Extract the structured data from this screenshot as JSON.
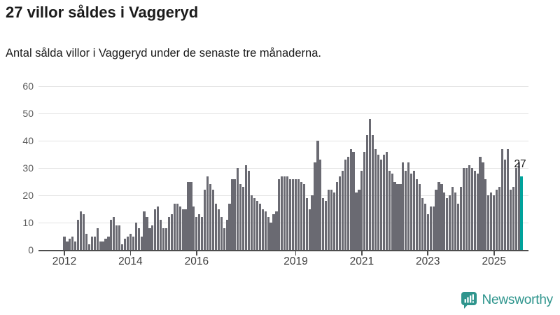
{
  "header": {
    "title": "27 villor såldes i Vaggeryd",
    "subtitle": "Antal sålda villor i Vaggeryd under de senaste tre månaderna."
  },
  "chart_data": {
    "type": "bar",
    "x_start": "2012-01",
    "x_interval": "month",
    "values": [
      5,
      3,
      4,
      5,
      3,
      11,
      14,
      13,
      6,
      2,
      5,
      5,
      8,
      3,
      3,
      4,
      5,
      11,
      12,
      9,
      9,
      2,
      4,
      5,
      6,
      5,
      10,
      8,
      5,
      14,
      12,
      8,
      9,
      15,
      16,
      11,
      8,
      8,
      12,
      13,
      17,
      17,
      16,
      15,
      15,
      25,
      25,
      16,
      12,
      13,
      12,
      22,
      27,
      24,
      22,
      17,
      15,
      12,
      8,
      11,
      17,
      26,
      26,
      30,
      24,
      23,
      31,
      29,
      20,
      19,
      18,
      17,
      15,
      14,
      12,
      10,
      13,
      14,
      26,
      27,
      27,
      27,
      26,
      26,
      26,
      26,
      25,
      24,
      19,
      15,
      20,
      32,
      40,
      33,
      19,
      18,
      22,
      22,
      21,
      25,
      27,
      29,
      33,
      34,
      37,
      36,
      21,
      22,
      29,
      36,
      42,
      48,
      42,
      37,
      35,
      33,
      35,
      36,
      29,
      28,
      25,
      24,
      24,
      32,
      29,
      32,
      28,
      29,
      26,
      24,
      19,
      17,
      13,
      16,
      16,
      22,
      25,
      24,
      21,
      19,
      20,
      23,
      21,
      17,
      23,
      30,
      30,
      31,
      30,
      29,
      28,
      34,
      32,
      26,
      20,
      21,
      20,
      22,
      23,
      37,
      33,
      37,
      22,
      23,
      30,
      32,
      27
    ],
    "highlight_last": true,
    "annotation": {
      "text": "27"
    },
    "y_ticks": [
      0,
      10,
      20,
      30,
      40,
      50,
      60
    ],
    "ylim": [
      0,
      60
    ],
    "x_tick_labels": [
      "2012",
      "2014",
      "2016",
      "2019",
      "2021",
      "2023",
      "2025"
    ],
    "x_tick_month_index": [
      0,
      24,
      48,
      84,
      108,
      132,
      156
    ],
    "grid": "horizontal",
    "colors": {
      "bar": "#6a6a72",
      "highlight": "#00a29b",
      "gridline": "#e4e4e4",
      "axis": "#4d4d4d",
      "logo_teal": "#2f958d"
    }
  },
  "footer": {
    "brand": "Newsworthy"
  }
}
